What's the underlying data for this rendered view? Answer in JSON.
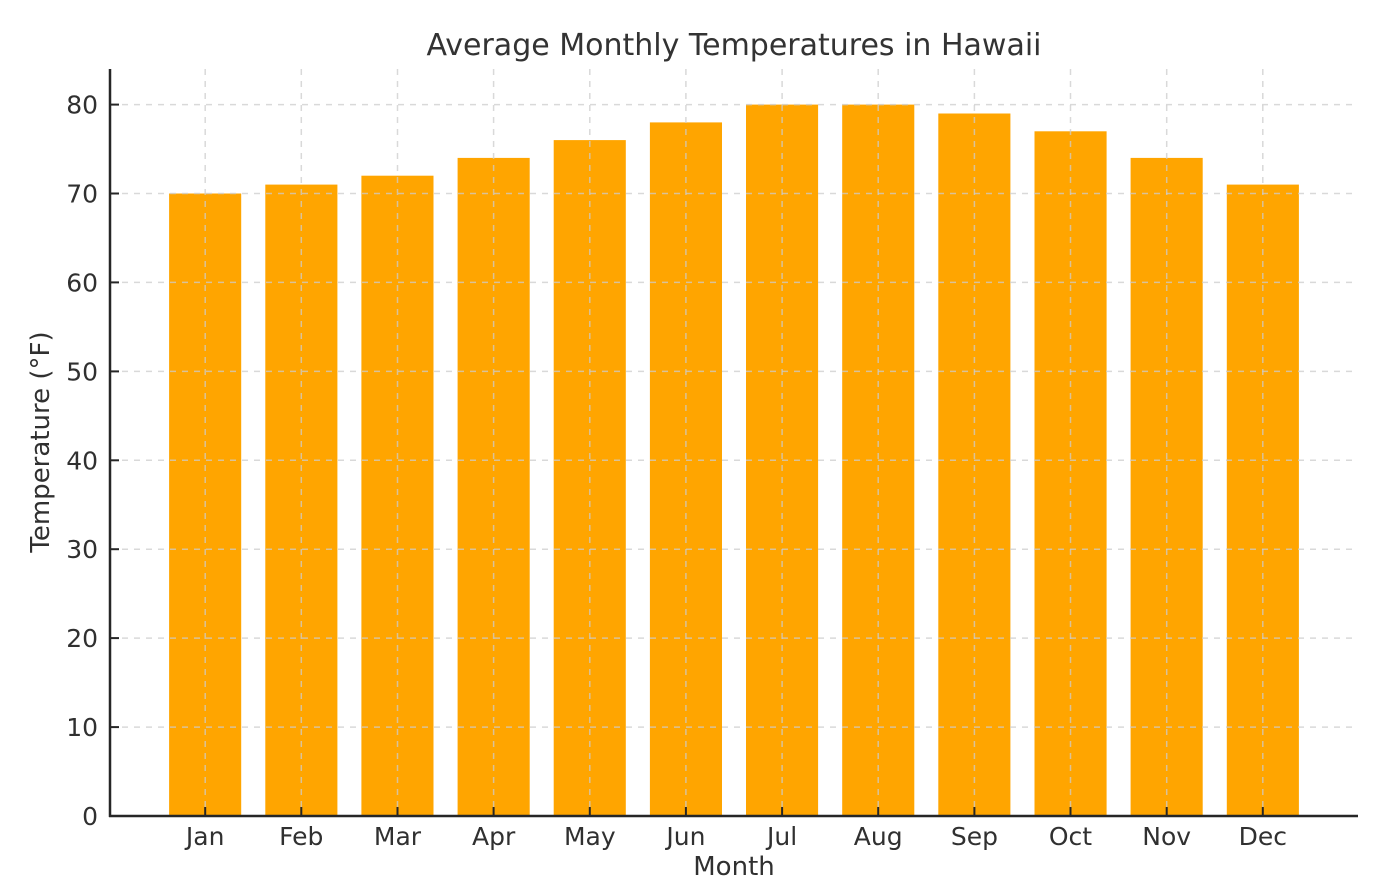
{
  "chart_data": {
    "type": "bar",
    "title": "Average Monthly Temperatures in Hawaii",
    "xlabel": "Month",
    "ylabel": "Temperature (°F)",
    "categories": [
      "Jan",
      "Feb",
      "Mar",
      "Apr",
      "May",
      "Jun",
      "Jul",
      "Aug",
      "Sep",
      "Oct",
      "Nov",
      "Dec"
    ],
    "values": [
      70,
      71,
      72,
      74,
      76,
      78,
      80,
      80,
      79,
      77,
      74,
      71
    ],
    "yticks": [
      0,
      10,
      20,
      30,
      40,
      50,
      60,
      70,
      80
    ],
    "ylim": [
      0,
      84
    ],
    "grid": true,
    "grid_style": "dashed",
    "legend_position": "none",
    "colors": {
      "bar": "#FFA500",
      "grid": "#cccccc",
      "spine": "#262626",
      "tick": "#262626",
      "tick_label": "#303030",
      "title": "#333333",
      "background": "#ffffff"
    }
  }
}
